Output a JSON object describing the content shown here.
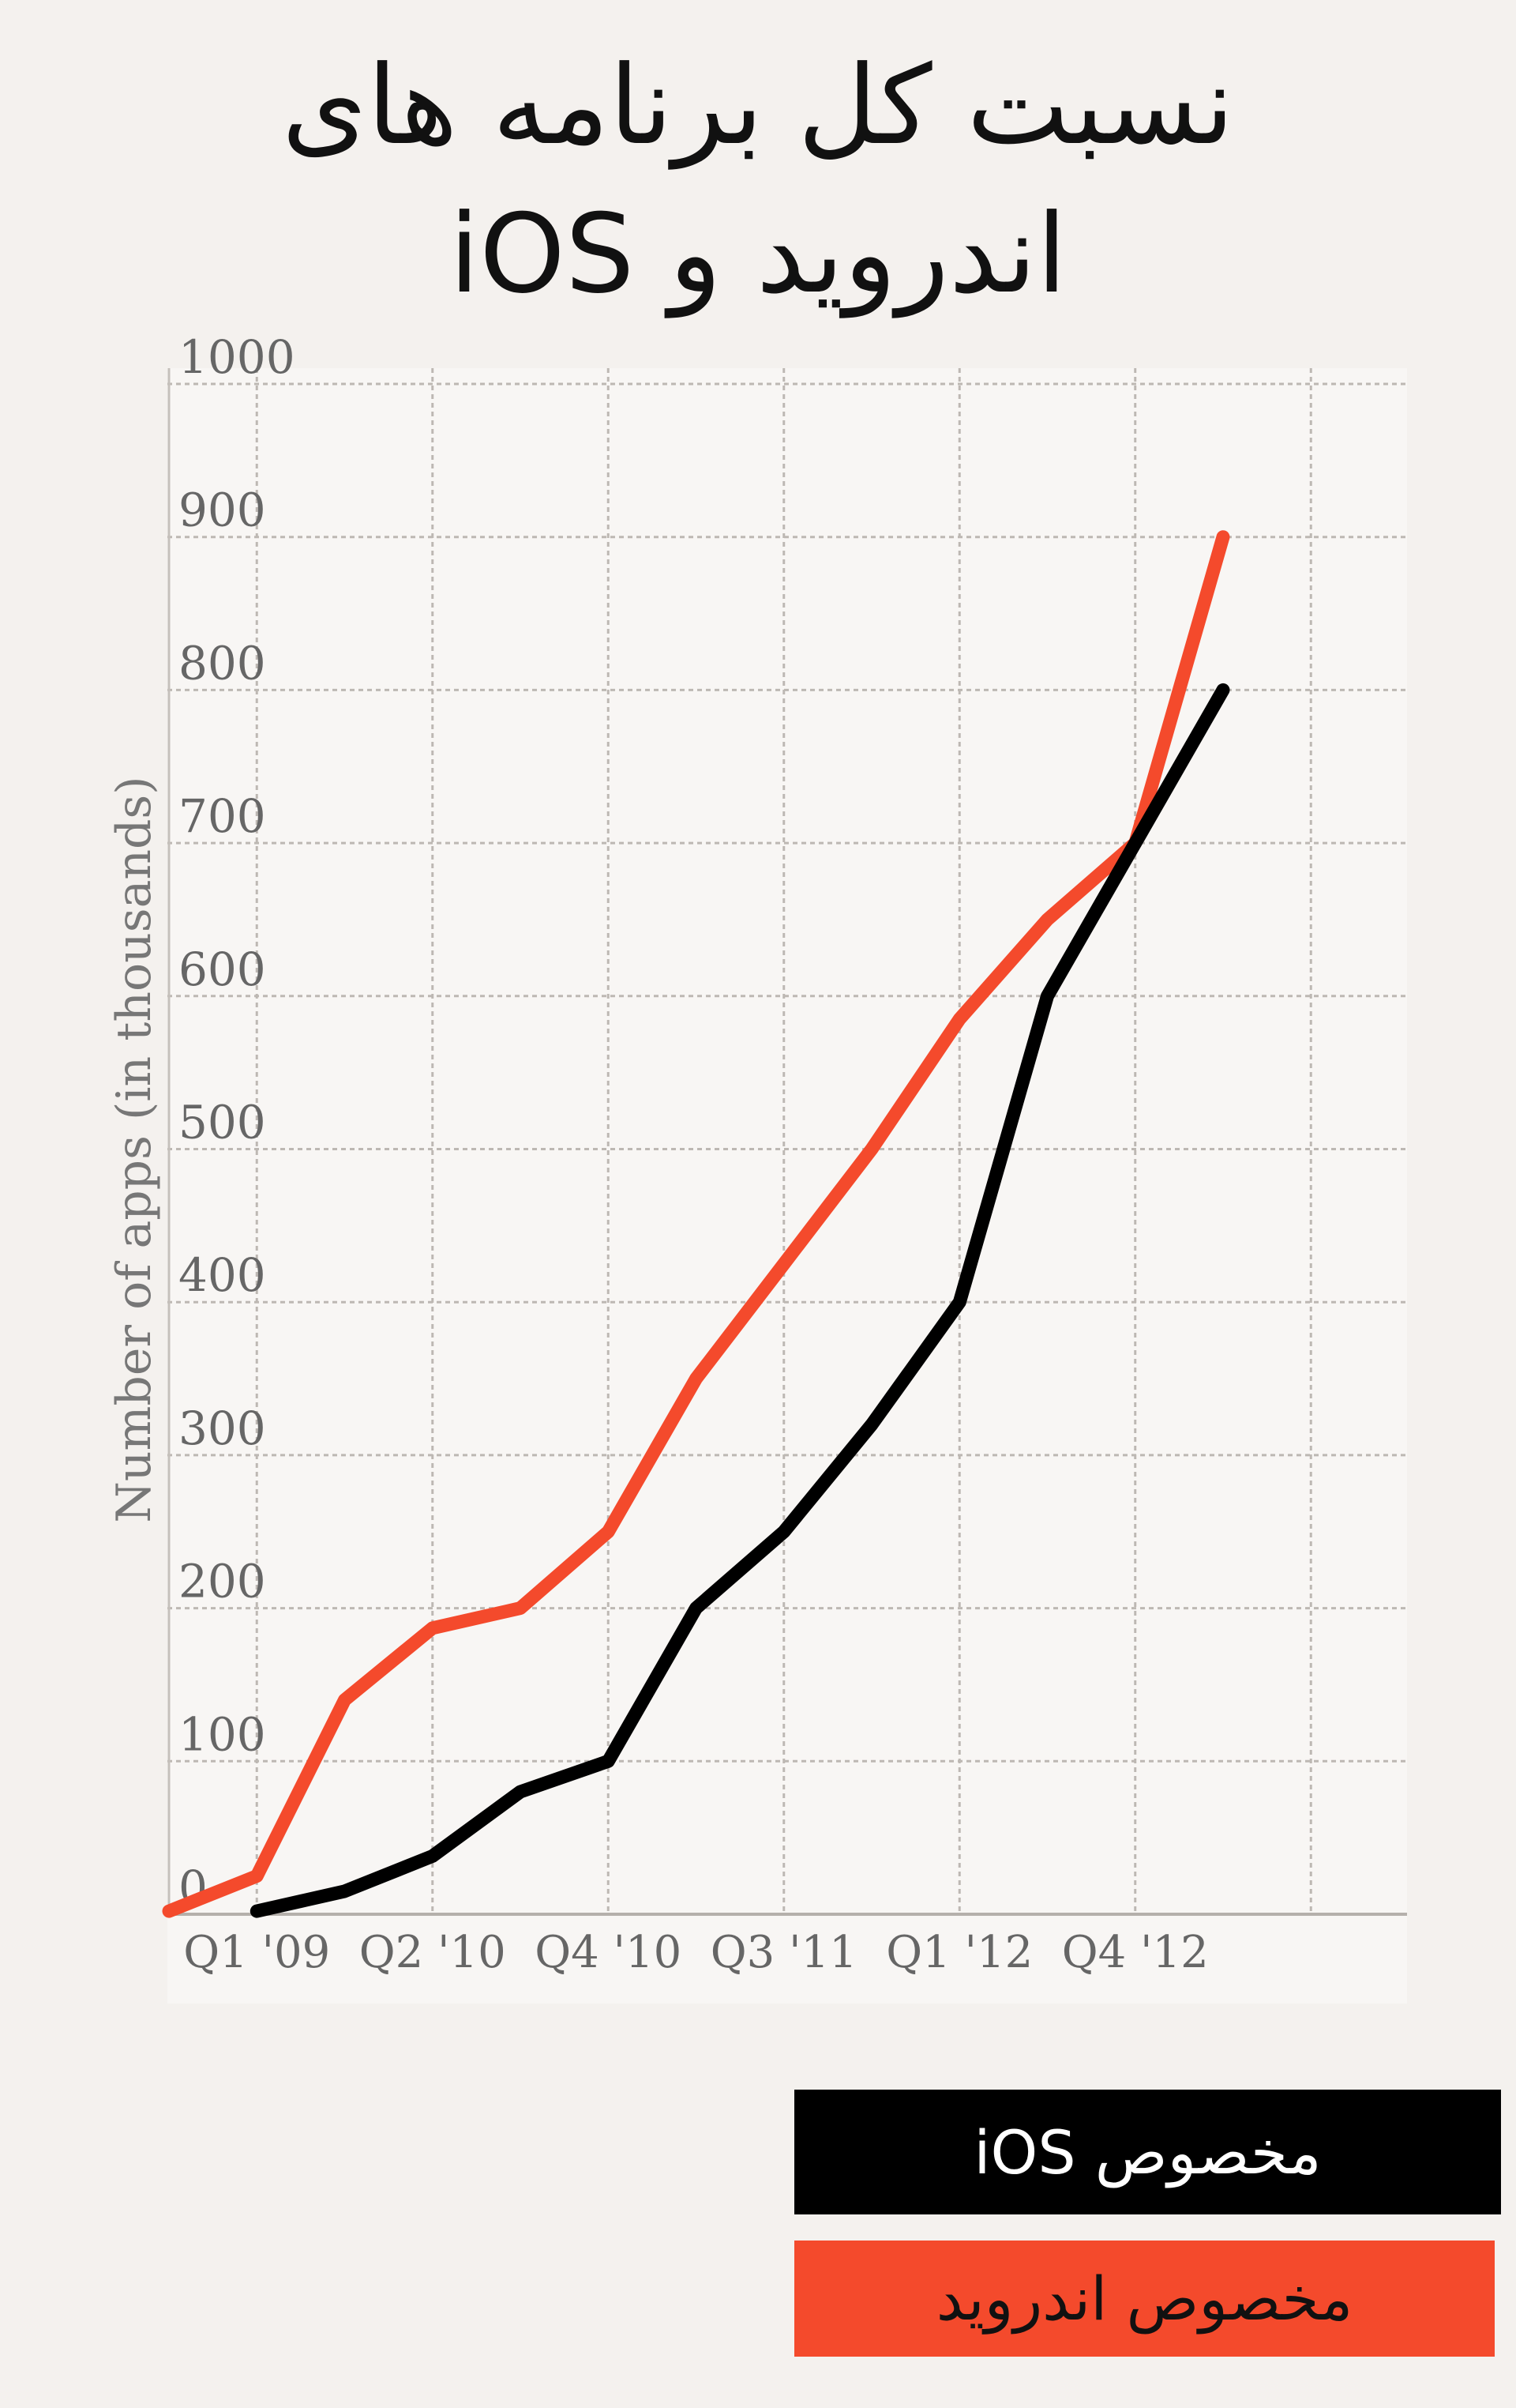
{
  "header": {
    "title_line1": "نسبت کل برنامه های",
    "title_line2": "اندروید و iOS"
  },
  "legend": {
    "ios_label": "مخصوص iOS",
    "android_label": "مخصوص اندروید"
  },
  "chart_data": {
    "type": "line",
    "title": "نسبت کل برنامه های اندروید و iOS",
    "ylabel": "Number of apps (in thousands)",
    "xlabel": "",
    "ylim": [
      0,
      1000
    ],
    "yticks": [
      0,
      100,
      200,
      300,
      400,
      500,
      600,
      700,
      800,
      900,
      1000
    ],
    "x_tick_labels": [
      "Q1 '09",
      "Q2 '10",
      "Q4 '10",
      "Q3 '11",
      "Q1 '12",
      "Q4 '12"
    ],
    "grid": true,
    "series": [
      {
        "name": "مخصوص اندروید",
        "color": "#f44a2c",
        "points": [
          [
            0,
            2
          ],
          [
            1,
            25
          ],
          [
            2,
            140
          ],
          [
            3,
            187
          ],
          [
            4,
            200
          ],
          [
            5,
            250
          ],
          [
            6,
            350
          ],
          [
            7,
            425
          ],
          [
            8,
            500
          ],
          [
            9,
            585
          ],
          [
            10,
            650
          ],
          [
            11,
            700
          ],
          [
            12,
            900
          ]
        ]
      },
      {
        "name": "مخصوص iOS",
        "color": "#000000",
        "points": [
          [
            1,
            2
          ],
          [
            2,
            15
          ],
          [
            3,
            38
          ],
          [
            4,
            80
          ],
          [
            5,
            100
          ],
          [
            6,
            200
          ],
          [
            7,
            250
          ],
          [
            8,
            320
          ],
          [
            9,
            400
          ],
          [
            10,
            600
          ],
          [
            11,
            700
          ],
          [
            12,
            800
          ]
        ]
      }
    ]
  }
}
